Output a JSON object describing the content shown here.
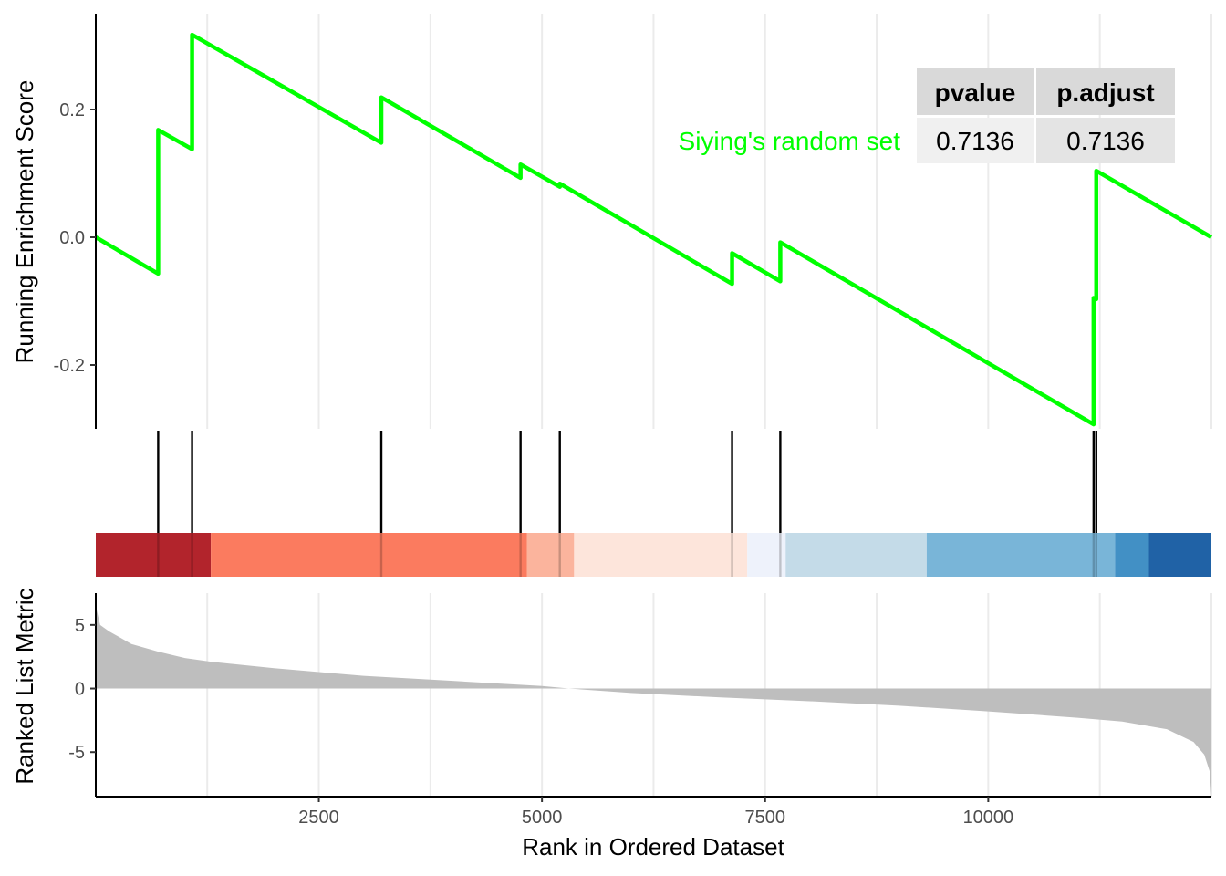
{
  "chart_data": {
    "type": "gsea",
    "x_label": "Rank in Ordered Dataset",
    "x_range": [
      1,
      12500
    ],
    "x_ticks": [
      2500,
      5000,
      7500,
      10000
    ],
    "x_tick_labels": [
      "2500",
      "5000",
      "7500",
      "10000"
    ],
    "series": [
      {
        "name": "Siying's random set",
        "color": "#00ff00",
        "points": [
          [
            1,
            0.0
          ],
          [
            700,
            -0.057
          ],
          [
            700,
            0.168
          ],
          [
            1080,
            0.138
          ],
          [
            1080,
            0.317
          ],
          [
            3200,
            0.148
          ],
          [
            3200,
            0.219
          ],
          [
            4760,
            0.093
          ],
          [
            4760,
            0.114
          ],
          [
            5200,
            0.079
          ],
          [
            5200,
            0.084
          ],
          [
            7130,
            -0.073
          ],
          [
            7130,
            -0.025
          ],
          [
            7670,
            -0.069
          ],
          [
            7670,
            -0.008
          ],
          [
            11180,
            -0.293
          ],
          [
            11180,
            -0.095
          ],
          [
            11210,
            -0.097
          ],
          [
            11210,
            0.104
          ],
          [
            12500,
            0.0
          ]
        ]
      }
    ],
    "panels": [
      {
        "id": "running-score",
        "y_label": "Running Enrichment Score",
        "y_range": [
          -0.3,
          0.35
        ],
        "y_ticks": [
          -0.2,
          0.0,
          0.2
        ],
        "y_tick_labels": [
          "-0.2",
          "0.0",
          "0.2"
        ]
      },
      {
        "id": "hit-positions",
        "hits": [
          700,
          1080,
          3200,
          4760,
          5200,
          7130,
          7670,
          11180,
          11210
        ]
      },
      {
        "id": "color-bar",
        "segments": [
          {
            "from": 1,
            "to": 1290,
            "color": "#b2242c"
          },
          {
            "from": 1290,
            "to": 4830,
            "color": "#fb7b5f"
          },
          {
            "from": 4830,
            "to": 5360,
            "color": "#fbb49d"
          },
          {
            "from": 5360,
            "to": 7300,
            "color": "#fde5db"
          },
          {
            "from": 7300,
            "to": 7730,
            "color": "#eef2fb"
          },
          {
            "from": 7730,
            "to": 9310,
            "color": "#c4dbe8"
          },
          {
            "from": 9310,
            "to": 11420,
            "color": "#79b5d8"
          },
          {
            "from": 11420,
            "to": 11800,
            "color": "#4290c5"
          },
          {
            "from": 11800,
            "to": 12500,
            "color": "#2062a6"
          }
        ]
      },
      {
        "id": "ranked-metric",
        "y_label": "Ranked List Metric",
        "y_range": [
          -8.5,
          7.5
        ],
        "y_ticks": [
          -5,
          0,
          5
        ],
        "y_tick_labels": [
          "-5",
          "0",
          "5"
        ],
        "fill_color": "#bebebe",
        "curve": [
          [
            1,
            6.5
          ],
          [
            50,
            5.0
          ],
          [
            150,
            4.5
          ],
          [
            400,
            3.5
          ],
          [
            700,
            2.9
          ],
          [
            1000,
            2.4
          ],
          [
            1300,
            2.1
          ],
          [
            2000,
            1.6
          ],
          [
            3000,
            1.0
          ],
          [
            4000,
            0.6
          ],
          [
            5000,
            0.2
          ],
          [
            5300,
            0.0
          ],
          [
            6000,
            -0.35
          ],
          [
            7000,
            -0.7
          ],
          [
            8000,
            -1.0
          ],
          [
            9000,
            -1.35
          ],
          [
            10000,
            -1.8
          ],
          [
            11000,
            -2.3
          ],
          [
            11500,
            -2.6
          ],
          [
            12000,
            -3.2
          ],
          [
            12300,
            -4.2
          ],
          [
            12420,
            -5.2
          ],
          [
            12480,
            -6.5
          ],
          [
            12500,
            -8.3
          ]
        ]
      }
    ],
    "table": {
      "headers": [
        "pvalue",
        "p.adjust"
      ],
      "row_label": "Siying's random set",
      "values": [
        "0.7136",
        "0.7136"
      ]
    }
  }
}
